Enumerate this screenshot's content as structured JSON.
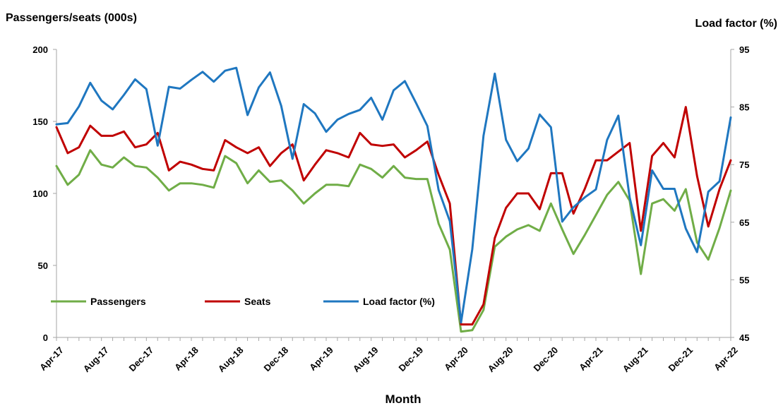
{
  "chart_data": {
    "type": "line",
    "title": "",
    "left_axis_title": "Passengers/seats (000s)",
    "right_axis_title": "Load factor (%)",
    "xlabel": "Month",
    "ylim_left": [
      0,
      200
    ],
    "yticks_left": [
      0,
      50,
      100,
      150,
      200
    ],
    "ylim_right": [
      45,
      95
    ],
    "yticks_right": [
      45,
      55,
      65,
      75,
      85,
      95
    ],
    "x_tick_labels": [
      "Apr-17",
      "Aug-17",
      "Dec-17",
      "Apr-18",
      "Aug-18",
      "Dec-18",
      "Apr-19",
      "Aug-19",
      "Dec-19",
      "Apr-20",
      "Aug-20",
      "Dec-20",
      "Apr-21",
      "Aug-21",
      "Dec-21",
      "Apr-22"
    ],
    "grid": false,
    "legend_position": "bottom-left",
    "series": [
      {
        "name": "Passengers",
        "axis": "left",
        "color": "#70ad47",
        "values": [
          119,
          106,
          113,
          130,
          120,
          118,
          125,
          119,
          118,
          111,
          102,
          107,
          107,
          106,
          104,
          126,
          121,
          107,
          116,
          108,
          109,
          102,
          93,
          100,
          106,
          106,
          105,
          120,
          117,
          111,
          119,
          111,
          110,
          110,
          79,
          61,
          4,
          5,
          19,
          63,
          70,
          75,
          78,
          74,
          93,
          75,
          58,
          71,
          85,
          99,
          108,
          95,
          44,
          93,
          96,
          88,
          103,
          66,
          54,
          76,
          102
        ]
      },
      {
        "name": "Seats",
        "axis": "left",
        "color": "#c00000",
        "values": [
          146,
          128,
          132,
          147,
          140,
          140,
          143,
          132,
          134,
          142,
          116,
          122,
          120,
          117,
          116,
          137,
          132,
          128,
          132,
          119,
          128,
          134,
          109,
          120,
          130,
          128,
          125,
          142,
          134,
          133,
          134,
          125,
          130,
          136,
          113,
          93,
          9,
          9,
          23,
          69,
          90,
          100,
          100,
          89,
          114,
          114,
          86,
          103,
          123,
          123,
          129,
          135,
          74,
          126,
          135,
          125,
          160,
          112,
          77,
          103,
          123
        ]
      },
      {
        "name": "Load factor (%)",
        "axis": "right",
        "color": "#1f77c0",
        "values": [
          82,
          82.2,
          85.1,
          89.2,
          86.1,
          84.6,
          87.1,
          89.8,
          88.1,
          78.3,
          88.5,
          88.2,
          89.7,
          91.1,
          89.4,
          91.3,
          91.8,
          83.6,
          88.4,
          91.0,
          85.2,
          76.0,
          85.5,
          83.9,
          80.7,
          82.8,
          83.8,
          84.5,
          86.6,
          82.8,
          87.9,
          89.5,
          85.7,
          81.7,
          70.6,
          65.2,
          47.6,
          60.3,
          80.0,
          90.8,
          79.3,
          75.6,
          77.8,
          83.7,
          81.5,
          65.1,
          67.6,
          69.3,
          70.7,
          79.3,
          83.5,
          69.3,
          61.0,
          74.0,
          70.8,
          70.8,
          63.9,
          59.8,
          70.3,
          72.1,
          83.2
        ]
      }
    ]
  }
}
